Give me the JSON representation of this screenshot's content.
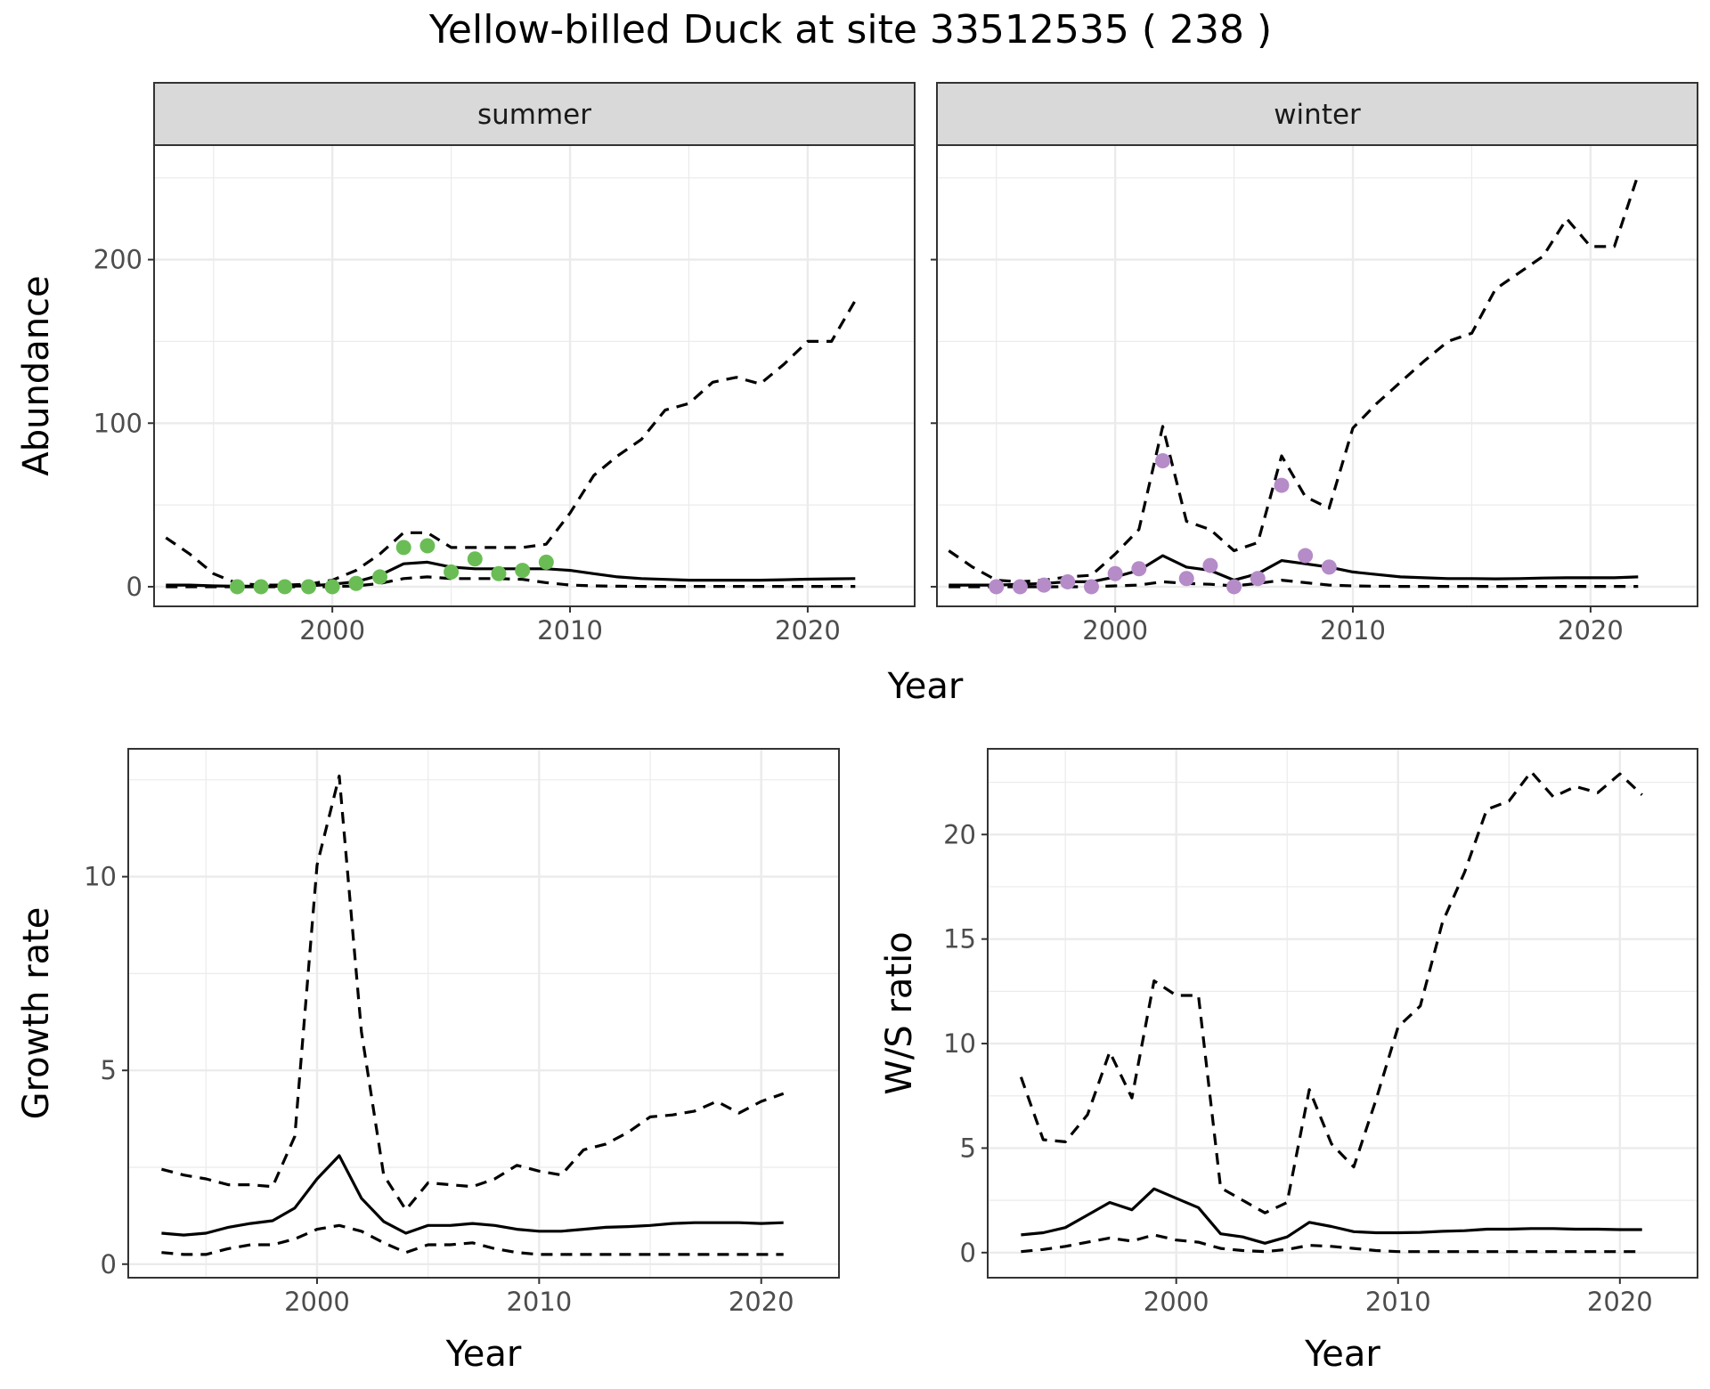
{
  "title": "Yellow-billed Duck at site 33512535 ( 238 )",
  "colors": {
    "summer_points": "#6ABD55",
    "winter_points": "#B58BC8",
    "lines": "#000000",
    "strip_fill": "#D9D9D9",
    "grid": "#EBEBEB"
  },
  "top_xlabel": "Year",
  "chart_data": [
    {
      "id": "summer",
      "type": "line",
      "panel_title": "summer",
      "ylabel": "Abundance",
      "xlim": [
        1992.5,
        2024.5
      ],
      "ylim": [
        -12,
        270
      ],
      "xticks": [
        2000,
        2010,
        2020
      ],
      "yticks": [
        0,
        100,
        200
      ],
      "series": [
        {
          "name": "mean",
          "style": "solid",
          "x": [
            1993,
            1994,
            1995,
            1996,
            1997,
            1998,
            1999,
            2000,
            2001,
            2002,
            2003,
            2004,
            2005,
            2006,
            2007,
            2008,
            2009,
            2010,
            2011,
            2012,
            2013,
            2014,
            2015,
            2016,
            2017,
            2018,
            2019,
            2020,
            2021,
            2022
          ],
          "values": [
            1,
            1,
            0.5,
            0.3,
            0.3,
            0.3,
            0.5,
            1.5,
            3,
            7,
            14,
            15,
            12,
            11,
            11,
            11,
            11,
            10,
            8,
            6,
            5,
            4.5,
            4,
            4,
            4,
            4,
            4.3,
            4.6,
            4.8,
            5
          ]
        },
        {
          "name": "upper",
          "style": "dashed",
          "x": [
            1993,
            1994,
            1995,
            1996,
            1997,
            1998,
            1999,
            2000,
            2001,
            2002,
            2003,
            2004,
            2005,
            2006,
            2007,
            2008,
            2009,
            2010,
            2011,
            2012,
            2013,
            2014,
            2015,
            2016,
            2017,
            2018,
            2019,
            2020,
            2021,
            2022
          ],
          "values": [
            30,
            20,
            8,
            2,
            1,
            1,
            1.5,
            4,
            10,
            20,
            33,
            33,
            24,
            24,
            24,
            24,
            26,
            45,
            68,
            80,
            90,
            108,
            112,
            125,
            128,
            124,
            136,
            150,
            150,
            175
          ]
        },
        {
          "name": "lower",
          "style": "dashed",
          "x": [
            1993,
            1994,
            1995,
            1996,
            1997,
            1998,
            1999,
            2000,
            2001,
            2002,
            2003,
            2004,
            2005,
            2006,
            2007,
            2008,
            2009,
            2010,
            2011,
            2012,
            2013,
            2014,
            2015,
            2016,
            2017,
            2018,
            2019,
            2020,
            2021,
            2022
          ],
          "values": [
            0,
            0,
            0,
            0,
            0,
            0,
            0,
            0,
            0.5,
            2,
            5,
            6,
            5,
            5,
            5,
            4.5,
            2.5,
            1,
            0.5,
            0.3,
            0.2,
            0.2,
            0.2,
            0.2,
            0.2,
            0.2,
            0.2,
            0.2,
            0.2,
            0.2
          ]
        }
      ],
      "points": {
        "name": "observed",
        "x": [
          1996,
          1997,
          1998,
          1999,
          2000,
          2001,
          2002,
          2003,
          2004,
          2005,
          2006,
          2007,
          2008,
          2009
        ],
        "values": [
          0,
          0,
          0,
          0,
          0,
          2,
          6,
          24,
          25,
          9,
          17,
          8,
          10,
          15
        ]
      }
    },
    {
      "id": "winter",
      "type": "line",
      "panel_title": "winter",
      "ylabel": "",
      "xlim": [
        1992.5,
        2024.5
      ],
      "ylim": [
        -12,
        270
      ],
      "xticks": [
        2000,
        2010,
        2020
      ],
      "yticks": [
        0,
        100,
        200
      ],
      "series": [
        {
          "name": "mean",
          "style": "solid",
          "x": [
            1993,
            1994,
            1995,
            1996,
            1997,
            1998,
            1999,
            2000,
            2001,
            2002,
            2003,
            2004,
            2005,
            2006,
            2007,
            2008,
            2009,
            2010,
            2011,
            2012,
            2013,
            2014,
            2015,
            2016,
            2017,
            2018,
            2019,
            2020,
            2021,
            2022
          ],
          "values": [
            1,
            1,
            1,
            1.5,
            2,
            3,
            3,
            6,
            10,
            19,
            12,
            10,
            4,
            8,
            16,
            14,
            12,
            9,
            7.5,
            6,
            5.5,
            5,
            5,
            4.8,
            5,
            5.3,
            5.5,
            5.5,
            5.5,
            6
          ]
        },
        {
          "name": "upper",
          "style": "dashed",
          "x": [
            1993,
            1994,
            1995,
            1996,
            1997,
            1998,
            1999,
            2000,
            2001,
            2002,
            2003,
            2004,
            2005,
            2006,
            2007,
            2008,
            2009,
            2010,
            2011,
            2012,
            2013,
            2014,
            2015,
            2016,
            2017,
            2018,
            2019,
            2020,
            2021,
            2022
          ],
          "values": [
            22,
            12,
            4,
            3,
            4,
            6,
            7,
            20,
            35,
            98,
            40,
            35,
            22,
            27,
            80,
            55,
            48,
            97,
            112,
            125,
            138,
            150,
            155,
            182,
            192,
            202,
            225,
            208,
            208,
            252
          ]
        },
        {
          "name": "lower",
          "style": "dashed",
          "x": [
            1993,
            1994,
            1995,
            1996,
            1997,
            1998,
            1999,
            2000,
            2001,
            2002,
            2003,
            2004,
            2005,
            2006,
            2007,
            2008,
            2009,
            2010,
            2011,
            2012,
            2013,
            2014,
            2015,
            2016,
            2017,
            2018,
            2019,
            2020,
            2021,
            2022
          ],
          "values": [
            0,
            0,
            0,
            0,
            0,
            0,
            0,
            0.5,
            1,
            3,
            2,
            1.5,
            0.5,
            2,
            4,
            2.5,
            1,
            0.5,
            0.3,
            0.2,
            0.2,
            0.2,
            0.2,
            0.2,
            0.2,
            0.2,
            0.2,
            0.2,
            0.2,
            0.2
          ]
        }
      ],
      "points": {
        "name": "observed",
        "x": [
          1995,
          1996,
          1997,
          1998,
          1999,
          2000,
          2001,
          2002,
          2003,
          2004,
          2005,
          2006,
          2007,
          2008,
          2009
        ],
        "values": [
          0,
          0,
          1,
          3,
          0,
          8,
          11,
          77,
          5,
          13,
          0,
          5,
          62,
          19,
          12
        ]
      }
    },
    {
      "id": "growth",
      "type": "line",
      "xlabel": "Year",
      "ylabel": "Growth rate",
      "xlim": [
        1991.5,
        2023.5
      ],
      "ylim": [
        -0.35,
        13.3
      ],
      "xticks": [
        2000,
        2010,
        2020
      ],
      "yticks": [
        0,
        5,
        10
      ],
      "series": [
        {
          "name": "mean",
          "style": "solid",
          "x": [
            1993,
            1994,
            1995,
            1996,
            1997,
            1998,
            1999,
            2000,
            2001,
            2002,
            2003,
            2004,
            2005,
            2006,
            2007,
            2008,
            2009,
            2010,
            2011,
            2012,
            2013,
            2014,
            2015,
            2016,
            2017,
            2018,
            2019,
            2020,
            2021
          ],
          "values": [
            0.8,
            0.75,
            0.8,
            0.95,
            1.05,
            1.12,
            1.45,
            2.2,
            2.8,
            1.7,
            1.1,
            0.8,
            1.0,
            1.0,
            1.05,
            1.0,
            0.9,
            0.85,
            0.85,
            0.9,
            0.95,
            0.97,
            1.0,
            1.05,
            1.07,
            1.07,
            1.07,
            1.05,
            1.07
          ]
        },
        {
          "name": "upper",
          "style": "dashed",
          "x": [
            1993,
            1994,
            1995,
            1996,
            1997,
            1998,
            1999,
            2000,
            2001,
            2002,
            2003,
            2004,
            2005,
            2006,
            2007,
            2008,
            2009,
            2010,
            2011,
            2012,
            2013,
            2014,
            2015,
            2016,
            2017,
            2018,
            2019,
            2020,
            2021
          ],
          "values": [
            2.45,
            2.3,
            2.2,
            2.05,
            2.05,
            2.0,
            3.3,
            10.3,
            12.6,
            6.0,
            2.3,
            1.4,
            2.1,
            2.05,
            2.0,
            2.2,
            2.55,
            2.4,
            2.3,
            2.95,
            3.1,
            3.4,
            3.8,
            3.85,
            3.95,
            4.2,
            3.9,
            4.2,
            4.4
          ]
        },
        {
          "name": "lower",
          "style": "dashed",
          "x": [
            1993,
            1994,
            1995,
            1996,
            1997,
            1998,
            1999,
            2000,
            2001,
            2002,
            2003,
            2004,
            2005,
            2006,
            2007,
            2008,
            2009,
            2010,
            2011,
            2012,
            2013,
            2014,
            2015,
            2016,
            2017,
            2018,
            2019,
            2020,
            2021
          ],
          "values": [
            0.3,
            0.25,
            0.25,
            0.4,
            0.5,
            0.5,
            0.65,
            0.9,
            1.0,
            0.85,
            0.55,
            0.3,
            0.5,
            0.5,
            0.55,
            0.4,
            0.3,
            0.25,
            0.25,
            0.25,
            0.25,
            0.25,
            0.25,
            0.25,
            0.25,
            0.25,
            0.25,
            0.25,
            0.25
          ]
        }
      ]
    },
    {
      "id": "ws_ratio",
      "type": "line",
      "xlabel": "Year",
      "ylabel": "W/S ratio",
      "xlim": [
        1991.5,
        2023.5
      ],
      "ylim": [
        -1.2,
        24.1
      ],
      "xticks": [
        2000,
        2010,
        2020
      ],
      "yticks": [
        0,
        5,
        10,
        15,
        20
      ],
      "series": [
        {
          "name": "mean",
          "style": "solid",
          "x": [
            1993,
            1994,
            1995,
            1996,
            1997,
            1998,
            1999,
            2000,
            2001,
            2002,
            2003,
            2004,
            2005,
            2006,
            2007,
            2008,
            2009,
            2010,
            2011,
            2012,
            2013,
            2014,
            2015,
            2016,
            2017,
            2018,
            2019,
            2020,
            2021
          ],
          "values": [
            0.85,
            0.95,
            1.2,
            1.8,
            2.4,
            2.05,
            3.05,
            2.6,
            2.15,
            0.9,
            0.75,
            0.45,
            0.75,
            1.45,
            1.25,
            1.0,
            0.95,
            0.95,
            0.97,
            1.02,
            1.05,
            1.12,
            1.12,
            1.15,
            1.15,
            1.12,
            1.12,
            1.1,
            1.1
          ]
        },
        {
          "name": "upper",
          "style": "dashed",
          "x": [
            1993,
            1994,
            1995,
            1996,
            1997,
            1998,
            1999,
            2000,
            2001,
            2002,
            2003,
            2004,
            2005,
            2006,
            2007,
            2008,
            2009,
            2010,
            2011,
            2012,
            2013,
            2014,
            2015,
            2016,
            2017,
            2018,
            2019,
            2020,
            2021
          ],
          "values": [
            8.4,
            5.4,
            5.3,
            6.6,
            9.6,
            7.4,
            13.0,
            12.3,
            12.3,
            3.1,
            2.5,
            1.9,
            2.4,
            7.8,
            5.2,
            4.1,
            7.3,
            10.8,
            11.8,
            15.8,
            18.2,
            21.2,
            21.6,
            23.0,
            21.8,
            22.3,
            22.0,
            22.9,
            21.9
          ]
        },
        {
          "name": "lower",
          "style": "dashed",
          "x": [
            1993,
            1994,
            1995,
            1996,
            1997,
            1998,
            1999,
            2000,
            2001,
            2002,
            2003,
            2004,
            2005,
            2006,
            2007,
            2008,
            2009,
            2010,
            2011,
            2012,
            2013,
            2014,
            2015,
            2016,
            2017,
            2018,
            2019,
            2020,
            2021
          ],
          "values": [
            0.05,
            0.15,
            0.3,
            0.5,
            0.7,
            0.55,
            0.85,
            0.6,
            0.5,
            0.2,
            0.1,
            0.05,
            0.15,
            0.35,
            0.3,
            0.2,
            0.1,
            0.05,
            0.05,
            0.05,
            0.05,
            0.05,
            0.05,
            0.05,
            0.05,
            0.05,
            0.05,
            0.05,
            0.05
          ]
        }
      ]
    }
  ]
}
